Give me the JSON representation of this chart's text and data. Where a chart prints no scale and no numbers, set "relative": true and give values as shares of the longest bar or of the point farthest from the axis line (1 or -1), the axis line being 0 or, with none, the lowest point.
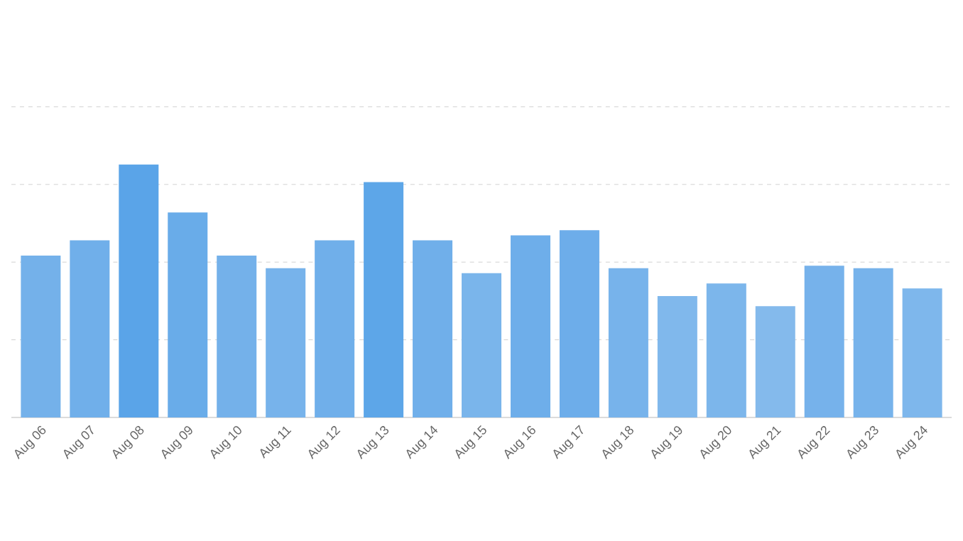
{
  "chart_data": {
    "type": "bar",
    "relative": true,
    "grid": "y",
    "categories": [
      "Aug 06",
      "Aug 07",
      "Aug 08",
      "Aug 09",
      "Aug 10",
      "Aug 11",
      "Aug 12",
      "Aug 13",
      "Aug 14",
      "Aug 15",
      "Aug 16",
      "Aug 17",
      "Aug 18",
      "Aug 19",
      "Aug 20",
      "Aug 21",
      "Aug 22",
      "Aug 23",
      "Aug 24"
    ],
    "values": [
      0.64,
      0.7,
      1,
      0.81,
      0.64,
      0.59,
      0.7,
      0.93,
      0.7,
      0.57,
      0.72,
      0.74,
      0.59,
      0.48,
      0.53,
      0.44,
      0.6,
      0.59,
      0.51
    ],
    "colors": [
      "#74b1ea",
      "#70afea",
      "#5aa4e8",
      "#69ace9",
      "#74b1ea",
      "#77b3eb",
      "#70afea",
      "#5da6e8",
      "#70afea",
      "#7ab5eb",
      "#6eaeea",
      "#6dadea",
      "#77b3eb",
      "#80b8ec",
      "#7cb6eb",
      "#84baec",
      "#76b2eb",
      "#77b3eb",
      "#7eb7ec"
    ]
  }
}
